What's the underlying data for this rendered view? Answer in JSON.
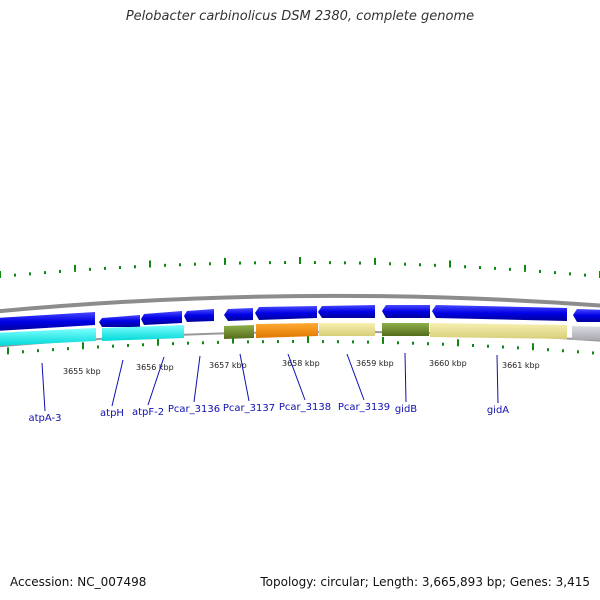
{
  "title": "Pelobacter carbinolicus DSM 2380, complete genome",
  "footer": {
    "accession": "Accession: NC_007498",
    "summary": "Topology: circular; Length: 3,665,893 bp; Genes: 3,415"
  },
  "colors": {
    "forward_gene": "#1010ee",
    "tick": "#118811",
    "backbone": "#888888",
    "label": "#1010b0",
    "cyan": "#00f0f0",
    "olive": "#6b8e23",
    "orange": "#ff8c00",
    "khaki": "#f0e68c",
    "gray": "#c0c0c8"
  },
  "scale_labels": [
    "3655 kbp",
    "3656 kbp",
    "3657 kbp",
    "3658 kbp",
    "3659 kbp",
    "3660 kbp",
    "3661 kbp"
  ],
  "genes": [
    {
      "name": "atpA-3"
    },
    {
      "name": "atpH"
    },
    {
      "name": "atpF-2"
    },
    {
      "name": "Pcar_3136"
    },
    {
      "name": "Pcar_3137"
    },
    {
      "name": "Pcar_3138"
    },
    {
      "name": "Pcar_3139"
    },
    {
      "name": "gidB"
    },
    {
      "name": "gidA"
    }
  ]
}
